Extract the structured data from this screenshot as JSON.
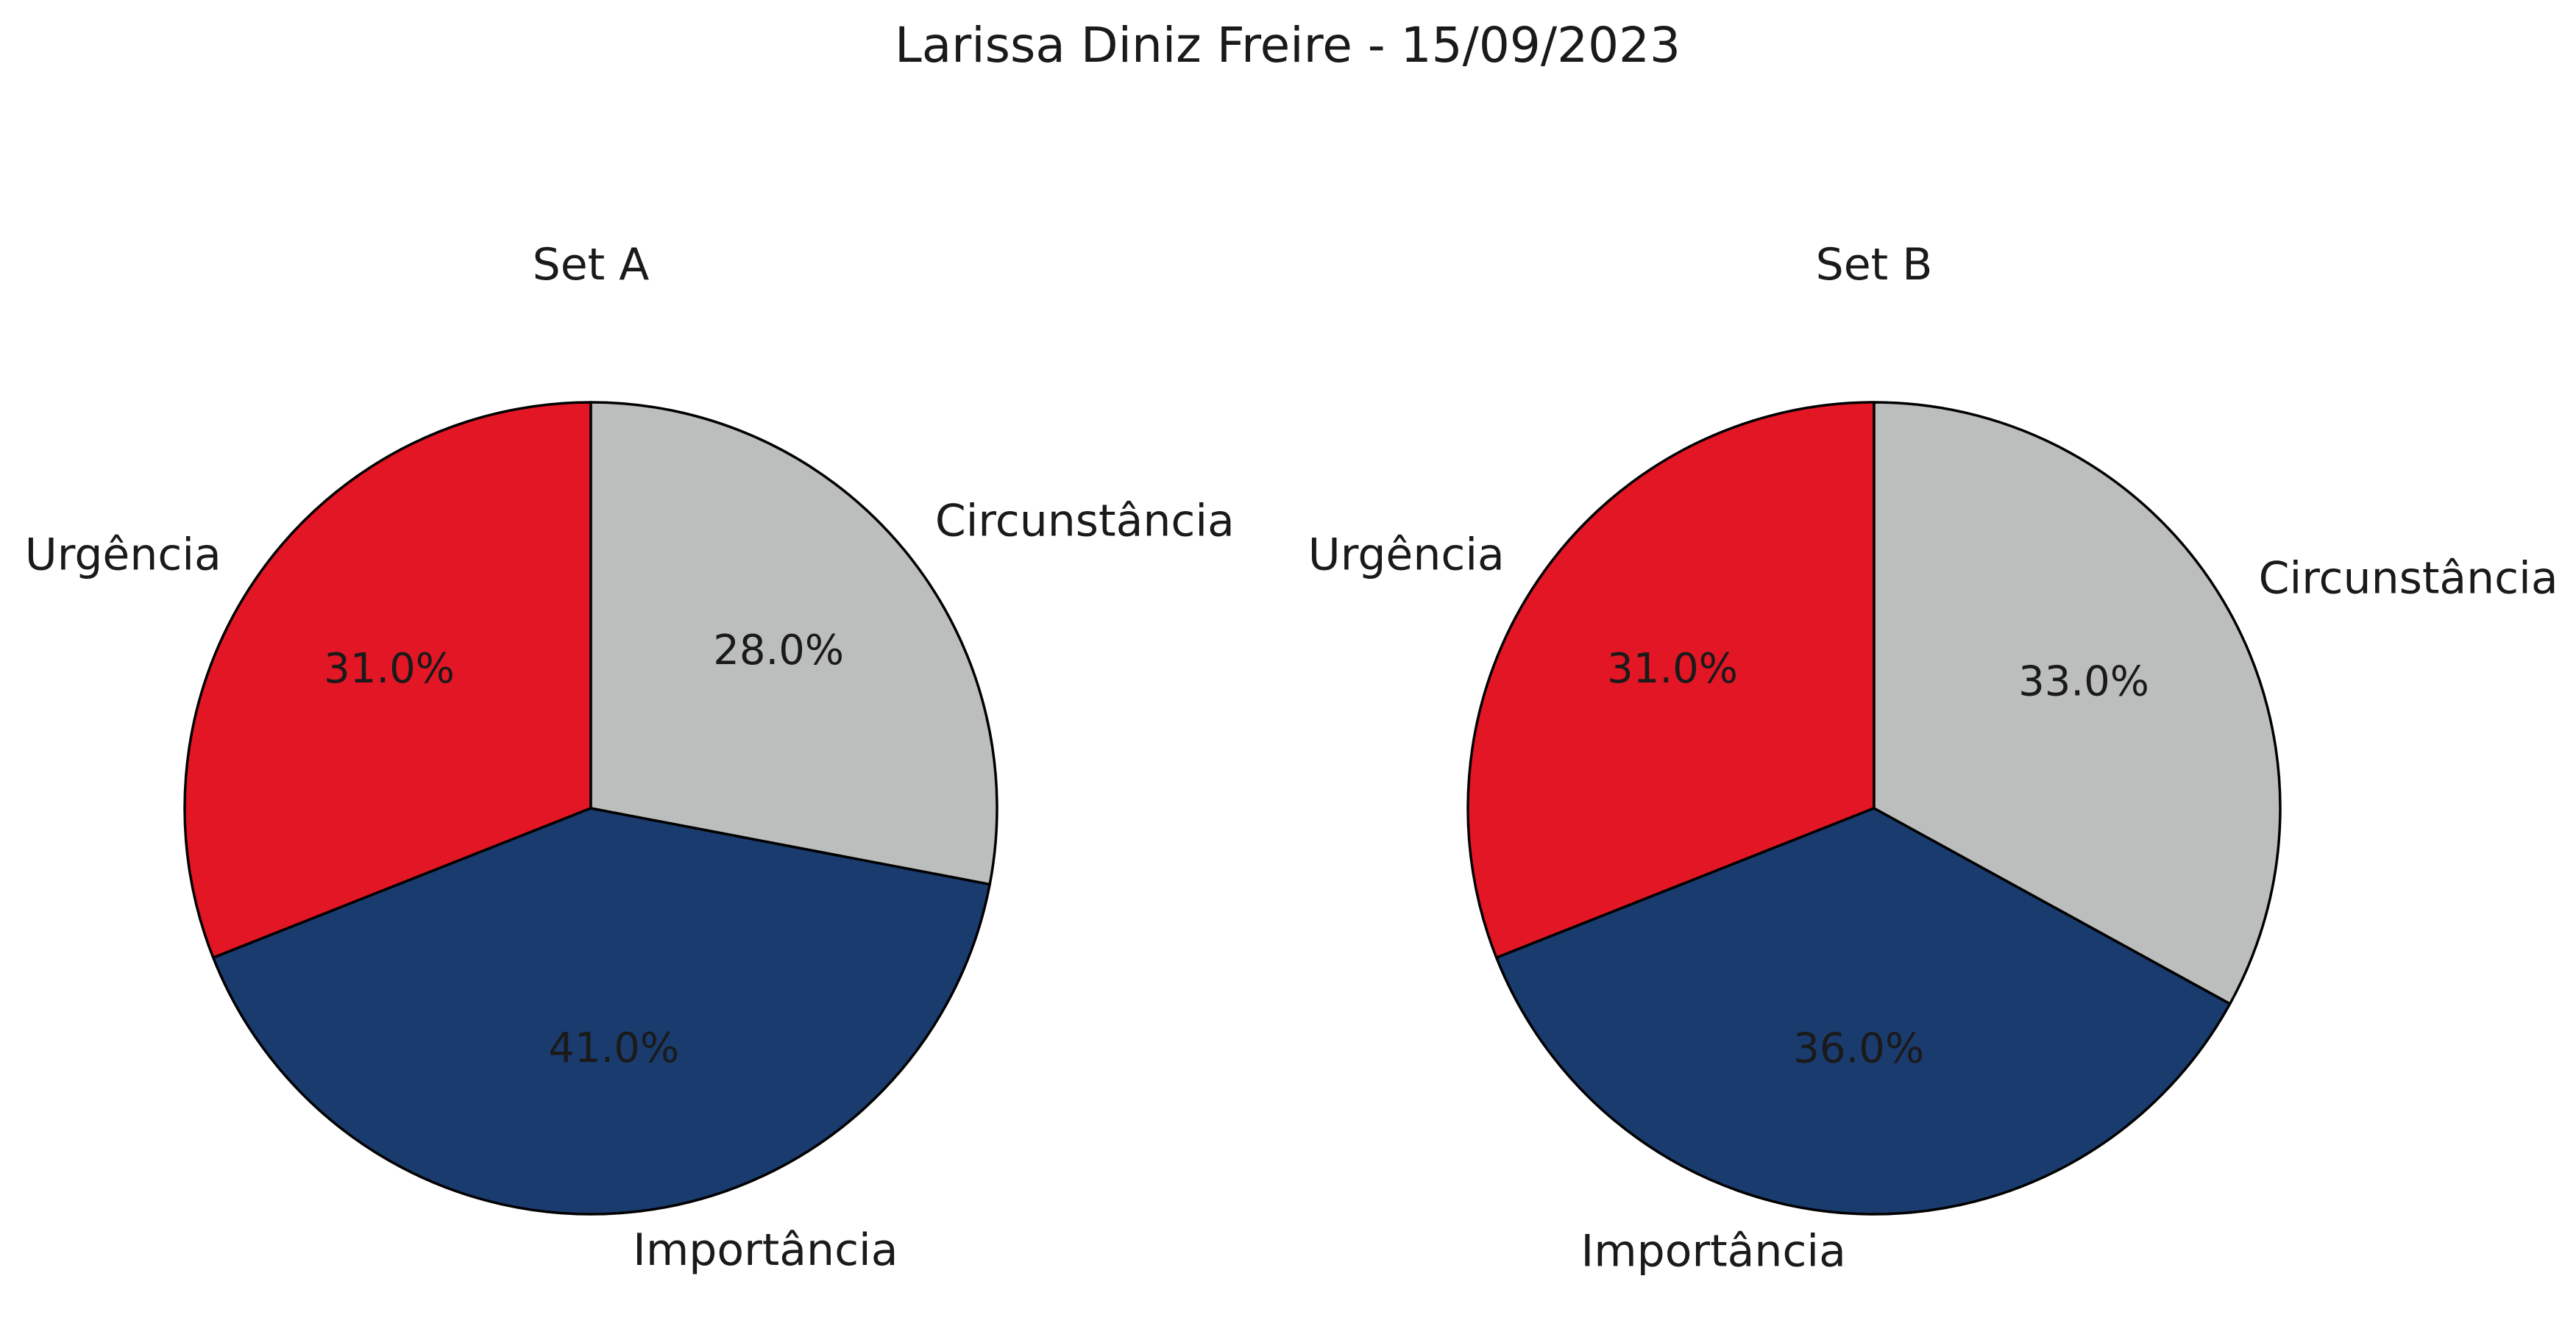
{
  "title": "Larissa Diniz Freire - 15/09/2023",
  "chart_data": [
    {
      "type": "pie",
      "title": "Set A",
      "start_angle_deg": 90,
      "direction": "counterclockwise",
      "categories": [
        "Urgência",
        "Importância",
        "Circunstância"
      ],
      "values": [
        31.0,
        41.0,
        28.0
      ],
      "value_labels": [
        "31.0%",
        "41.0%",
        "28.0%"
      ],
      "colors": [
        "#e31625",
        "#1a3b6e",
        "#bcbebe"
      ]
    },
    {
      "type": "pie",
      "title": "Set B",
      "start_angle_deg": 90,
      "direction": "counterclockwise",
      "categories": [
        "Urgência",
        "Importância",
        "Circunstância"
      ],
      "values": [
        31.0,
        36.0,
        33.0
      ],
      "value_labels": [
        "31.0%",
        "36.0%",
        "33.0%"
      ],
      "colors": [
        "#e31625",
        "#1a3b6e",
        "#bcbebe"
      ]
    }
  ]
}
